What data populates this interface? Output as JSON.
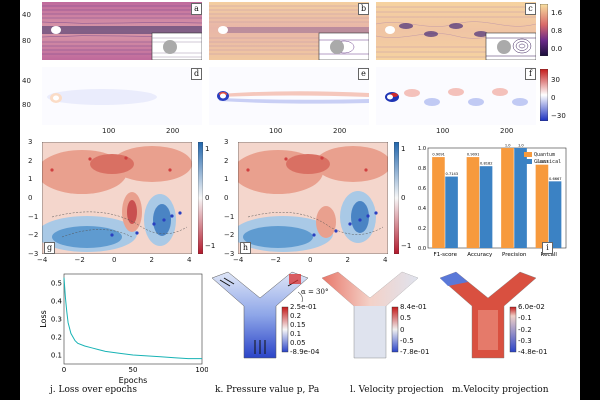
{
  "panels": {
    "top_row": [
      {
        "letter": "a"
      },
      {
        "letter": "b"
      },
      {
        "letter": "c"
      }
    ],
    "mid_row": [
      {
        "letter": "d"
      },
      {
        "letter": "e"
      },
      {
        "letter": "f"
      }
    ],
    "contour_row": [
      {
        "letter": "g"
      },
      {
        "letter": "h"
      },
      {
        "letter": "i"
      }
    ]
  },
  "ticks": {
    "flow_y": [
      "40",
      "80"
    ],
    "flow_x": [
      "100",
      "200"
    ],
    "contour_y": [
      "3",
      "2",
      "1",
      "0",
      "−1",
      "−2",
      "−3"
    ],
    "contour_x": [
      "−4",
      "−2",
      "0",
      "2",
      "4"
    ],
    "velocity_cb": [
      "1.6",
      "0.8",
      "0.0"
    ],
    "vorticity_cb": [
      "30",
      "0",
      "−30"
    ],
    "contour_cb": [
      "1",
      "0",
      "−1"
    ]
  },
  "chart_data": [
    {
      "type": "bar",
      "panel": "i",
      "categories": [
        "F1-score",
        "Accuracy",
        "Precision",
        "Recall"
      ],
      "series": [
        {
          "name": "Quantum",
          "values": [
            0.9091,
            0.9091,
            1.0,
            0.8333
          ],
          "labels": [
            "0.9091",
            "0.9091",
            "1.0",
            "0.8333"
          ],
          "color": "#f79a3d"
        },
        {
          "name": "Classical",
          "values": [
            0.7143,
            0.8182,
            1.0,
            0.6667
          ],
          "labels": [
            "0.7143",
            "0.8182",
            "1.0",
            "0.6667"
          ],
          "color": "#3b82c4"
        }
      ],
      "ylim": [
        0.0,
        1.0
      ],
      "yticks": [
        "1.0",
        "0.8",
        "0.6",
        "0.4",
        "0.2",
        "0.0"
      ]
    },
    {
      "type": "line",
      "panel": "j",
      "xlabel": "Epochs",
      "ylabel": "Loss",
      "xlim": [
        0,
        100
      ],
      "ylim": [
        0.05,
        0.55
      ],
      "xticks": [
        "0",
        "50",
        "100"
      ],
      "yticks": [
        "0.5",
        "0.4",
        "0.3",
        "0.2",
        "0.1"
      ],
      "x": [
        0,
        1,
        2,
        3,
        5,
        8,
        10,
        15,
        20,
        25,
        30,
        40,
        50,
        60,
        70,
        80,
        90,
        100
      ],
      "values": [
        0.53,
        0.42,
        0.34,
        0.28,
        0.22,
        0.18,
        0.165,
        0.15,
        0.14,
        0.13,
        0.12,
        0.11,
        0.1,
        0.095,
        0.09,
        0.085,
        0.08,
        0.08
      ],
      "color": "#18b3b5"
    }
  ],
  "bottom_figures": {
    "k": {
      "angle_label": "α = 30°",
      "cb_ticks": [
        "2.5e-01",
        "0.2",
        "0.15",
        "0.1",
        "0.05",
        "-8.9e-04"
      ]
    },
    "l": {
      "cb_ticks": [
        "8.4e-01",
        "0.5",
        "0",
        "-0.5",
        "-7.8e-01"
      ]
    },
    "m": {
      "cb_ticks": [
        "6.0e-02",
        "-0.1",
        "-0.2",
        "-0.3",
        "-4.8e-01"
      ]
    }
  },
  "captions": {
    "j": "j. Loss over epochs",
    "k": "k. Pressure value p, Pa",
    "l": "l. Velocity projection",
    "m": "m.Velocity projection"
  }
}
